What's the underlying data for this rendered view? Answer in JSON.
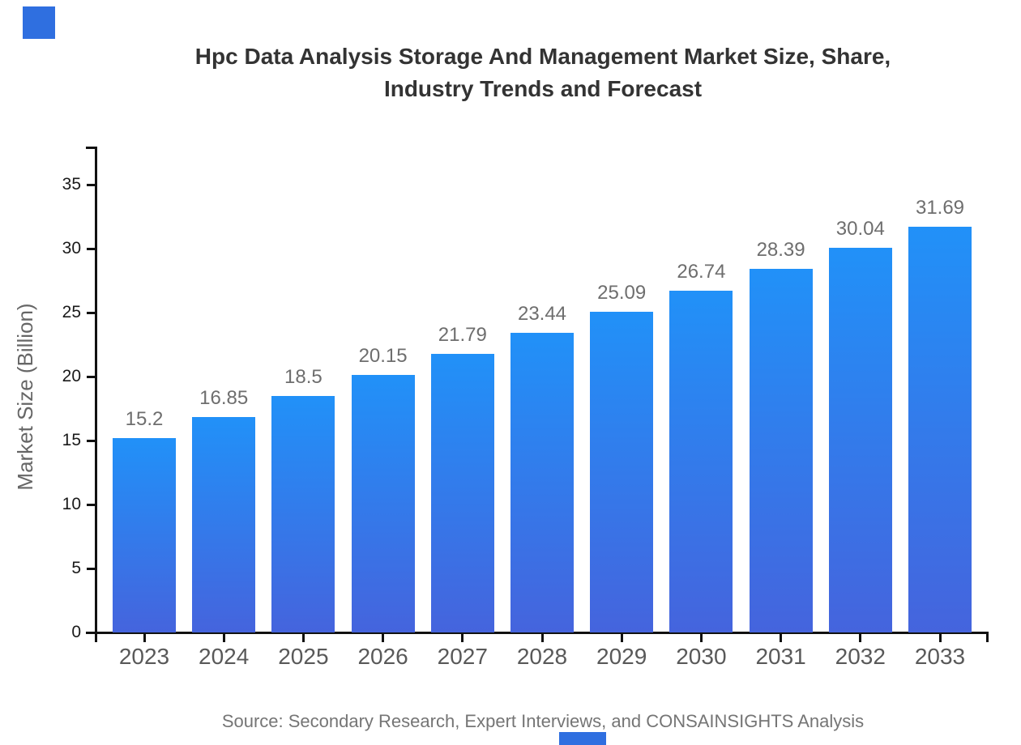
{
  "page": {
    "title_line1": "Hpc Data Analysis Storage And Management Market Size, Share,",
    "title_line2": "Industry Trends and Forecast",
    "source_note": "Source: Secondary Research, Expert Interviews, and CONSAINSIGHTS Analysis"
  },
  "chart_data": {
    "type": "bar",
    "title": "Hpc Data Analysis Storage And Management Market Size, Share, Industry Trends and Forecast",
    "categories": [
      "2023",
      "2024",
      "2025",
      "2026",
      "2027",
      "2028",
      "2029",
      "2030",
      "2031",
      "2032",
      "2033"
    ],
    "values": [
      15.2,
      16.85,
      18.5,
      20.15,
      21.79,
      23.44,
      25.09,
      26.74,
      28.39,
      30.04,
      31.69
    ],
    "value_labels": [
      "15.2",
      "16.85",
      "18.5",
      "20.15",
      "21.79",
      "23.44",
      "25.09",
      "26.74",
      "28.39",
      "30.04",
      "31.69"
    ],
    "xlabel": "",
    "ylabel": "Market Size (Billion)",
    "ylim": [
      0,
      38
    ],
    "yticks": [
      0,
      5,
      10,
      15,
      20,
      25,
      30,
      35
    ],
    "grid": false,
    "legend": "none",
    "bar_gradient_top": "#2191f8",
    "bar_gradient_bottom": "#4564dd",
    "source": "Source: Secondary Research, Expert Interviews, and CONSAINSIGHTS Analysis"
  },
  "decor": {
    "accent_blue": "#2f6fe0"
  }
}
